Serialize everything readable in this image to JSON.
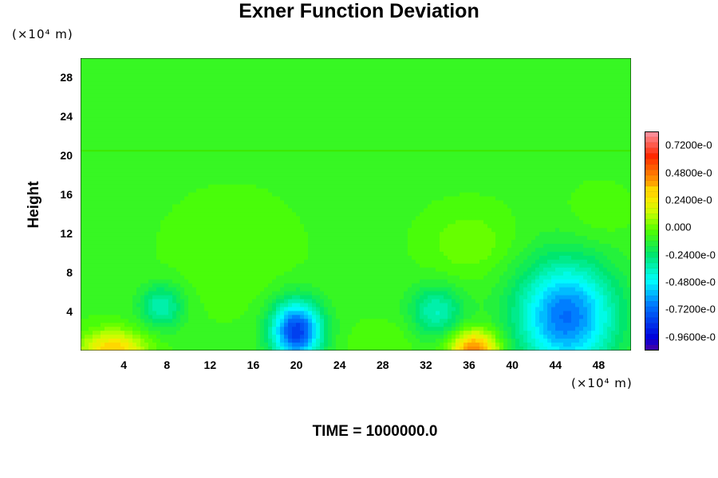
{
  "chart_data": {
    "type": "heatmap",
    "title": "Exner Function Deviation",
    "ylabel": "Height",
    "y_unit": "(×10⁴ m)",
    "x_unit": "(×10⁴ m)",
    "footer": "TIME = 1000000.0",
    "xlim": [
      0,
      51
    ],
    "ylim": [
      0,
      30
    ],
    "x_ticks": [
      "4",
      "8",
      "12",
      "16",
      "20",
      "24",
      "28",
      "32",
      "36",
      "40",
      "44",
      "48"
    ],
    "y_ticks": [
      "4",
      "8",
      "12",
      "16",
      "20",
      "24",
      "28"
    ],
    "colorbar_labels": [
      "0.7200e-0",
      "0.4800e-0",
      "0.2400e-0",
      "0.000",
      "-0.2400e-0",
      "-0.4800e-0",
      "-0.7200e-0",
      "-0.9600e-0"
    ],
    "colorbar_range": [
      -1.08,
      0.84
    ],
    "background_value": -0.06,
    "features": [
      {
        "x": 3,
        "y": 0,
        "value": 0.4,
        "sx": 3.0,
        "sy": 2.0
      },
      {
        "x": 36.5,
        "y": 0,
        "value": 0.55,
        "sx": 2.2,
        "sy": 2.0
      },
      {
        "x": 20,
        "y": 2,
        "value": -0.75,
        "sx": 2.3,
        "sy": 3.0
      },
      {
        "x": 45,
        "y": 3.5,
        "value": -0.62,
        "sx": 4.5,
        "sy": 5.5
      },
      {
        "x": 7.5,
        "y": 4.5,
        "value": -0.28,
        "sx": 2.0,
        "sy": 2.2
      },
      {
        "x": 33,
        "y": 4,
        "value": -0.28,
        "sx": 2.4,
        "sy": 2.6
      },
      {
        "x": 36,
        "y": 11,
        "value": 0.1,
        "sx": 4.0,
        "sy": 3.5
      },
      {
        "x": 28,
        "y": 1,
        "value": 0.06,
        "sx": 3.0,
        "sy": 2.0
      },
      {
        "x": 14,
        "y": 10,
        "value": 0.05,
        "sx": 6.0,
        "sy": 6.0
      },
      {
        "x": 48,
        "y": 14,
        "value": 0.05,
        "sx": 3.0,
        "sy": 3.0
      }
    ],
    "colors": {
      "top_layer": "#45ff00"
    }
  }
}
